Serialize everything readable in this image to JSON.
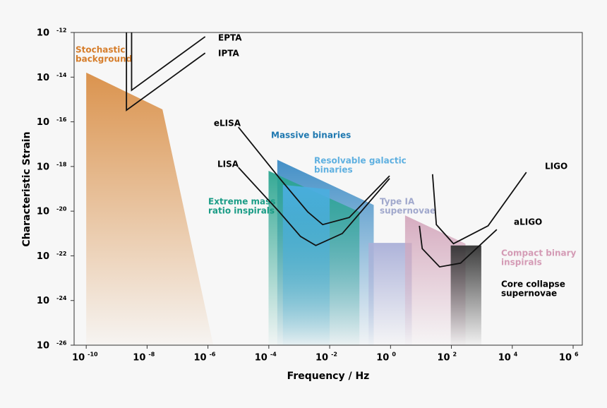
{
  "chart_data": {
    "type": "line",
    "xlabel": "Frequency / Hz",
    "ylabel": "Characteristic Strain",
    "log_x": true,
    "log_y": true,
    "xlim": [
      4e-11,
      2000000.0
    ],
    "ylim": [
      1e-26,
      1e-12
    ],
    "xticks": [
      {
        "value": 1e-10,
        "label": "10",
        "exponent": "-10"
      },
      {
        "value": 1e-08,
        "label": "10",
        "exponent": "-8"
      },
      {
        "value": 1e-06,
        "label": "10",
        "exponent": "-6"
      },
      {
        "value": 0.0001,
        "label": "10",
        "exponent": "-4"
      },
      {
        "value": 0.01,
        "label": "10",
        "exponent": "-2"
      },
      {
        "value": 1,
        "label": "10",
        "exponent": "0"
      },
      {
        "value": 100,
        "label": "10",
        "exponent": "2"
      },
      {
        "value": 10000,
        "label": "10",
        "exponent": "4"
      },
      {
        "value": 1000000,
        "label": "10",
        "exponent": "6"
      }
    ],
    "yticks": [
      {
        "value": 1e-12,
        "label": "10",
        "exponent": "-12"
      },
      {
        "value": 1e-14,
        "label": "10",
        "exponent": "-14"
      },
      {
        "value": 1e-16,
        "label": "10",
        "exponent": "-16"
      },
      {
        "value": 1e-18,
        "label": "10",
        "exponent": "-18"
      },
      {
        "value": 1e-20,
        "label": "10",
        "exponent": "-20"
      },
      {
        "value": 1e-22,
        "label": "10",
        "exponent": "-22"
      },
      {
        "value": 1e-24,
        "label": "10",
        "exponent": "-24"
      },
      {
        "value": 1e-26,
        "label": "10",
        "exponent": "-26"
      }
    ],
    "regions": [
      {
        "name": [
          "Stochastic",
          "background"
        ],
        "color": "#d98e45",
        "label_color": "#d67d2a",
        "x": [
          1e-10,
          3.2e-08,
          1.5e-06,
          1e-10
        ],
        "y": [
          1.6e-14,
          3.6e-16,
          1e-26,
          1e-26
        ]
      },
      {
        "name": [
          "Massive binaries"
        ],
        "color": "#3a8ac4",
        "label_color": "#1f78b0",
        "x": [
          0.00019,
          0.28,
          0.28,
          0.00019
        ],
        "y": [
          2e-18,
          1.9e-20,
          1e-26,
          1e-26
        ]
      },
      {
        "name": [
          "Extreme mass",
          "ratio inspirals"
        ],
        "color": "#2aa590",
        "label_color": "#1a9c86",
        "x": [
          9.8e-05,
          0.095,
          0.095,
          9.8e-05
        ],
        "y": [
          6.4e-19,
          9.3e-21,
          1e-26,
          1e-26
        ]
      },
      {
        "name": [
          "Resolvable galactic",
          "binaries"
        ],
        "color": "#4aaee0",
        "label_color": "#5fb0e0",
        "x": [
          0.00029,
          0.01,
          0.01,
          0.00029
        ],
        "y": [
          1.5e-19,
          9.5e-20,
          1e-26,
          1e-26
        ]
      },
      {
        "name": [
          "Type IA",
          "supernovae"
        ],
        "color": "#aab0d8",
        "label_color": "#a0a8cc",
        "x": [
          0.19,
          5,
          5,
          0.19
        ],
        "y": [
          3.8e-22,
          3.8e-22,
          1e-26,
          1e-26
        ]
      },
      {
        "name": [
          "Compact binary",
          "inspirals"
        ],
        "color": "#d4a8bd",
        "label_color": "#d49bb5",
        "x": [
          3,
          290,
          290,
          3
        ],
        "y": [
          6.5e-21,
          3.5e-22,
          1e-26,
          1e-26
        ]
      },
      {
        "name": [
          "Core collapse",
          "supernovae"
        ],
        "color": "#333333",
        "label_color": "#000000",
        "x": [
          95,
          960,
          960,
          95
        ],
        "y": [
          2.9e-22,
          2.9e-22,
          1e-26,
          1e-26
        ]
      }
    ],
    "series": [
      {
        "name": "EPTA",
        "color": "#111111",
        "x": [
          3.1e-09,
          3.1e-09,
          8.1e-07
        ],
        "values": [
          1e-12,
          2.6e-15,
          6.5e-13
        ]
      },
      {
        "name": "IPTA",
        "color": "#111111",
        "x": [
          2.1e-09,
          2.1e-09,
          8.1e-07
        ],
        "values": [
          1e-12,
          3.3e-16,
          1.2e-13
        ]
      },
      {
        "name": "eLISA",
        "color": "#111111",
        "x": [
          1e-05,
          0.00022,
          0.0019,
          0.0059,
          0.044,
          0.93
        ],
        "values": [
          5.8e-17,
          3.1e-19,
          9.3e-21,
          2.5e-21,
          5.2e-21,
          3.8e-19
        ]
      },
      {
        "name": "LISA",
        "color": "#111111",
        "x": [
          1e-05,
          0.00022,
          0.0011,
          0.0035,
          0.026,
          0.93
        ],
        "values": [
          9.1e-19,
          9.3e-21,
          7.4e-22,
          2.9e-22,
          1e-21,
          2.9e-19
        ]
      },
      {
        "name": "LIGO",
        "color": "#111111",
        "x": [
          24,
          32,
          117,
          1600,
          29000
        ],
        "values": [
          4.5e-19,
          2.5e-21,
          3.5e-22,
          2.2e-21,
          5.5e-19
        ]
      },
      {
        "name": "aLIGO",
        "color": "#111111",
        "x": [
          8.9,
          11,
          41,
          200,
          3100
        ],
        "values": [
          2.2e-21,
          2.1e-22,
          3.2e-23,
          4.7e-23,
          1.5e-21
        ]
      }
    ]
  }
}
